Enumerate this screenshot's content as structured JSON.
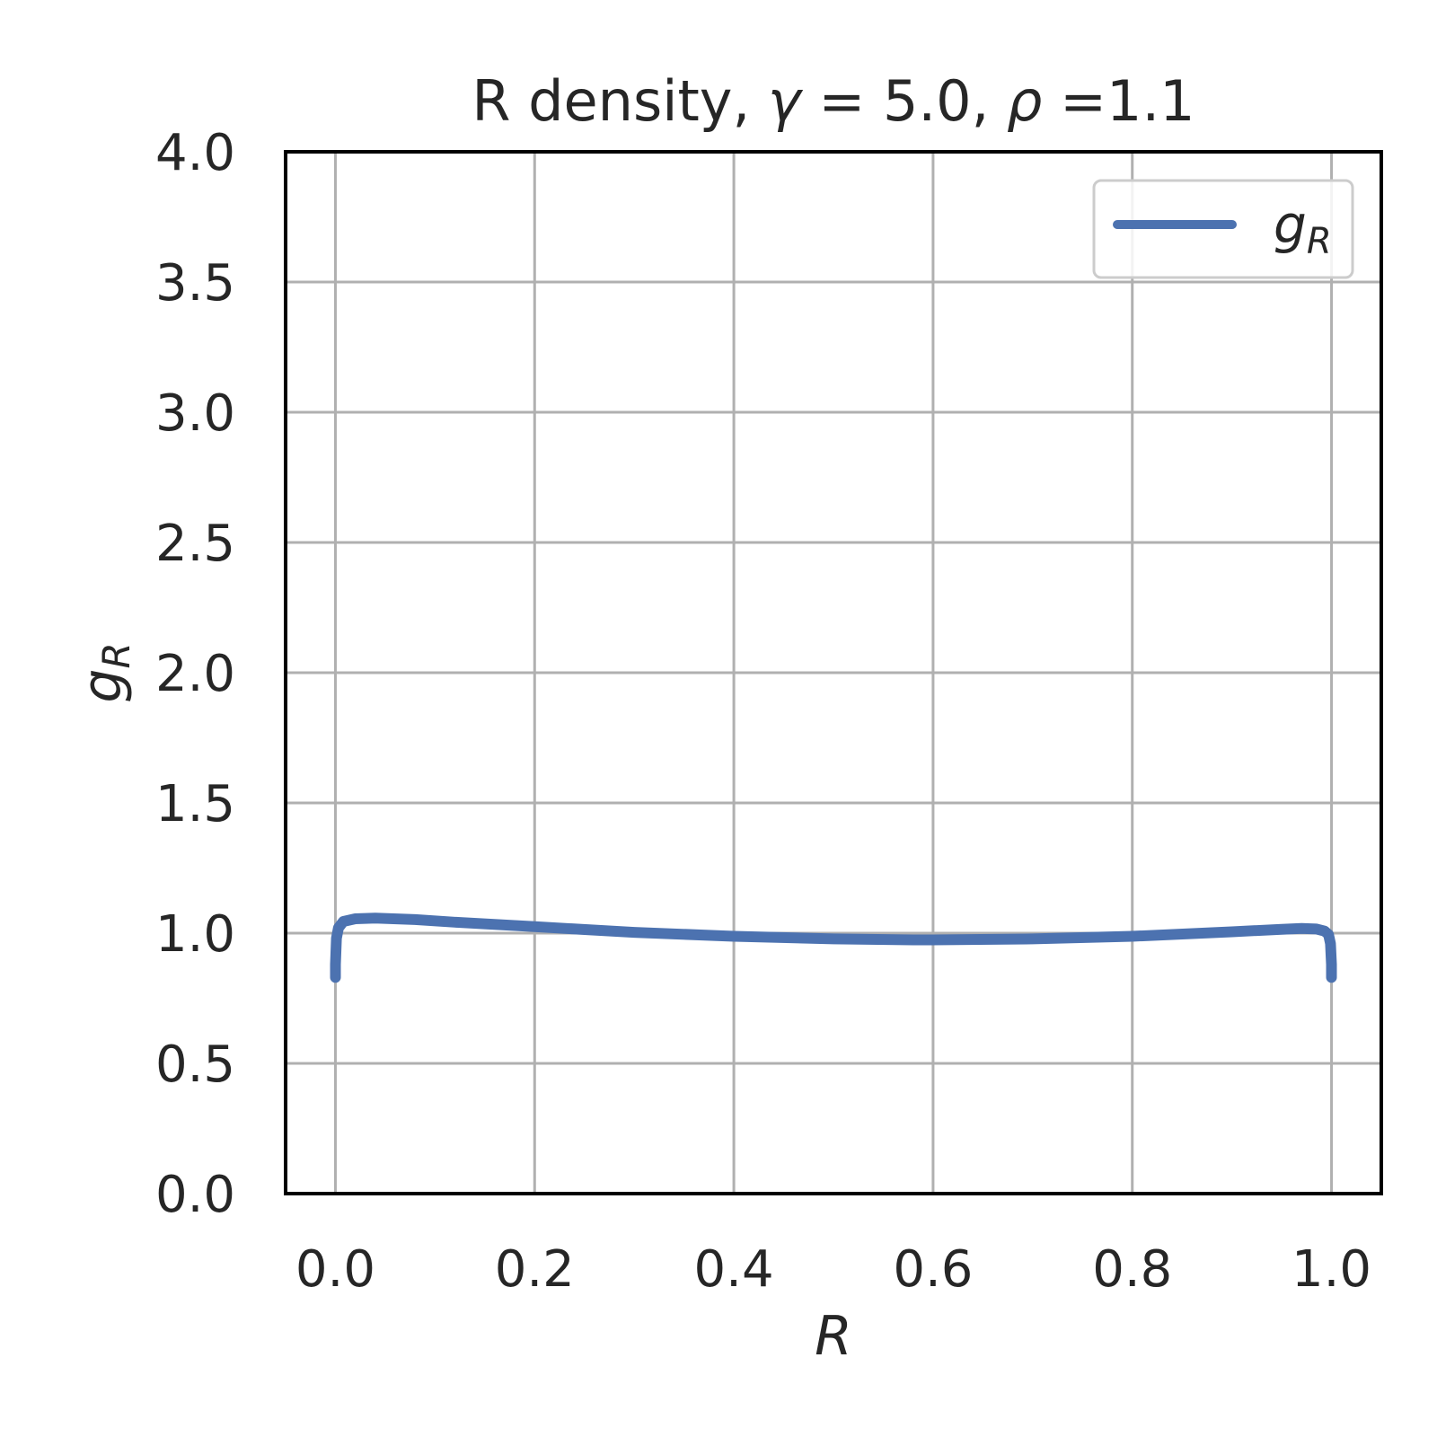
{
  "chart_data": {
    "type": "line",
    "title": {
      "prefix": "R density, ",
      "gamma_symbol": "γ",
      "gamma_part": " = 5.0, ",
      "rho_symbol": "ρ",
      "rho_part": " =1.1"
    },
    "xlabel": "R",
    "ylabel": {
      "base": "g",
      "sub": "R"
    },
    "xlim": [
      -0.05,
      1.05
    ],
    "ylim": [
      0.0,
      4.0
    ],
    "xticks": [
      "0.0",
      "0.2",
      "0.4",
      "0.6",
      "0.8",
      "1.0"
    ],
    "yticks": [
      "0.0",
      "0.5",
      "1.0",
      "1.5",
      "2.0",
      "2.5",
      "3.0",
      "3.5",
      "4.0"
    ],
    "grid": true,
    "legend_position": "top-right",
    "series": [
      {
        "name": {
          "base": "g",
          "sub": "R"
        },
        "color": "#4c72b0",
        "x": [
          0.0,
          0.0,
          0.001,
          0.003,
          0.008,
          0.02,
          0.04,
          0.08,
          0.12,
          0.2,
          0.3,
          0.4,
          0.5,
          0.58,
          0.6,
          0.7,
          0.8,
          0.9,
          0.95,
          0.97,
          0.985,
          0.993,
          0.997,
          0.999,
          1.0,
          1.0
        ],
        "y": [
          0.83,
          0.88,
          0.98,
          1.02,
          1.045,
          1.055,
          1.058,
          1.052,
          1.042,
          1.025,
          1.003,
          0.988,
          0.978,
          0.974,
          0.974,
          0.978,
          0.988,
          1.005,
          1.015,
          1.018,
          1.016,
          1.008,
          0.995,
          0.96,
          0.88,
          0.83
        ]
      }
    ]
  }
}
